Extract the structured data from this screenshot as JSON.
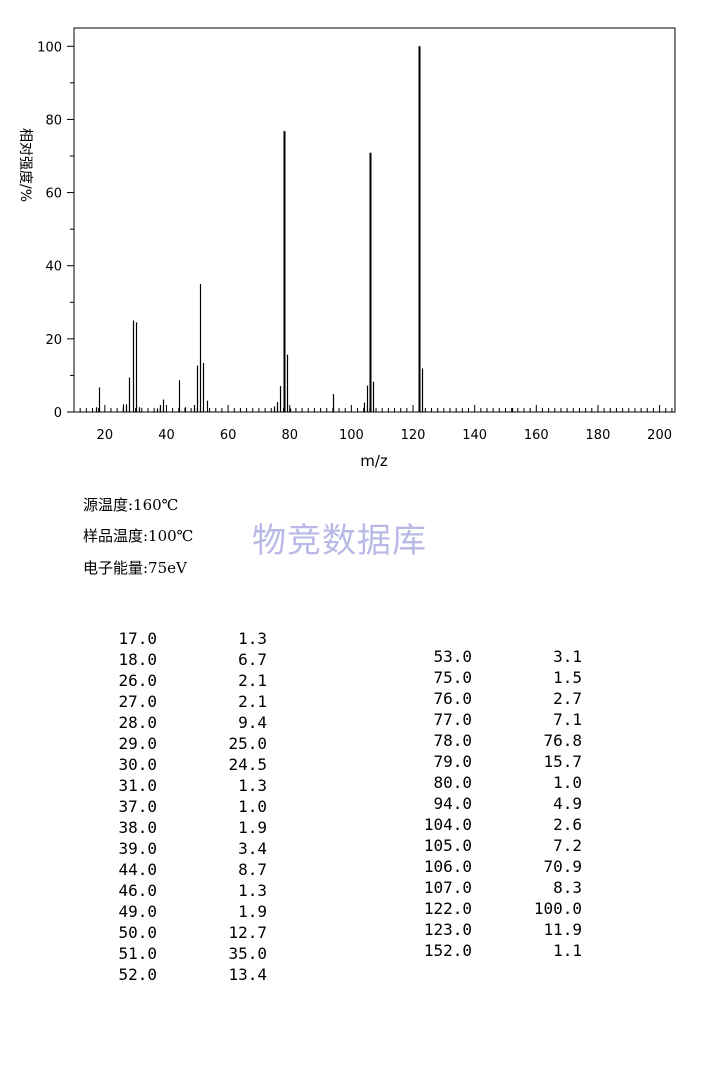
{
  "chart_data": {
    "type": "bar",
    "xlabel": "m/z",
    "ylabel": "相对强度/%",
    "xlim": [
      10,
      205
    ],
    "ylim": [
      0,
      105
    ],
    "xticks": [
      20,
      40,
      60,
      80,
      100,
      120,
      140,
      160,
      180,
      200
    ],
    "yticks": [
      0,
      20,
      40,
      60,
      80,
      100
    ],
    "grid": false,
    "peaks": {
      "x": [
        17,
        18,
        26,
        27,
        28,
        29,
        30,
        31,
        37,
        38,
        39,
        44,
        46,
        49,
        50,
        51,
        52,
        53,
        75,
        76,
        77,
        78,
        79,
        80,
        94,
        104,
        105,
        106,
        107,
        122,
        123,
        152
      ],
      "y": [
        1.3,
        6.7,
        2.1,
        2.1,
        9.4,
        25.0,
        24.5,
        1.3,
        1.0,
        1.9,
        3.4,
        8.7,
        1.3,
        1.9,
        12.7,
        35.0,
        13.4,
        3.1,
        1.5,
        2.7,
        7.1,
        76.8,
        15.7,
        1.0,
        4.9,
        2.6,
        7.2,
        70.9,
        8.3,
        100.0,
        11.9,
        1.1
      ]
    }
  },
  "conditions": {
    "source_temp": "源温度:160℃",
    "sample_temp": "样品温度:100℃",
    "electron_energy": "电子能量:75eV"
  },
  "watermark": "物竞数据库",
  "peak_table": {
    "left": [
      [
        "17.0",
        "1.3"
      ],
      [
        "18.0",
        "6.7"
      ],
      [
        "26.0",
        "2.1"
      ],
      [
        "27.0",
        "2.1"
      ],
      [
        "28.0",
        "9.4"
      ],
      [
        "29.0",
        "25.0"
      ],
      [
        "30.0",
        "24.5"
      ],
      [
        "31.0",
        "1.3"
      ],
      [
        "37.0",
        "1.0"
      ],
      [
        "38.0",
        "1.9"
      ],
      [
        "39.0",
        "3.4"
      ],
      [
        "44.0",
        "8.7"
      ],
      [
        "46.0",
        "1.3"
      ],
      [
        "49.0",
        "1.9"
      ],
      [
        "50.0",
        "12.7"
      ],
      [
        "51.0",
        "35.0"
      ],
      [
        "52.0",
        "13.4"
      ]
    ],
    "right": [
      [
        "53.0",
        "3.1"
      ],
      [
        "75.0",
        "1.5"
      ],
      [
        "76.0",
        "2.7"
      ],
      [
        "77.0",
        "7.1"
      ],
      [
        "78.0",
        "76.8"
      ],
      [
        "79.0",
        "15.7"
      ],
      [
        "80.0",
        "1.0"
      ],
      [
        "94.0",
        "4.9"
      ],
      [
        "104.0",
        "2.6"
      ],
      [
        "105.0",
        "7.2"
      ],
      [
        "106.0",
        "70.9"
      ],
      [
        "107.0",
        "8.3"
      ],
      [
        "122.0",
        "100.0"
      ],
      [
        "123.0",
        "11.9"
      ],
      [
        "152.0",
        "1.1"
      ]
    ]
  }
}
